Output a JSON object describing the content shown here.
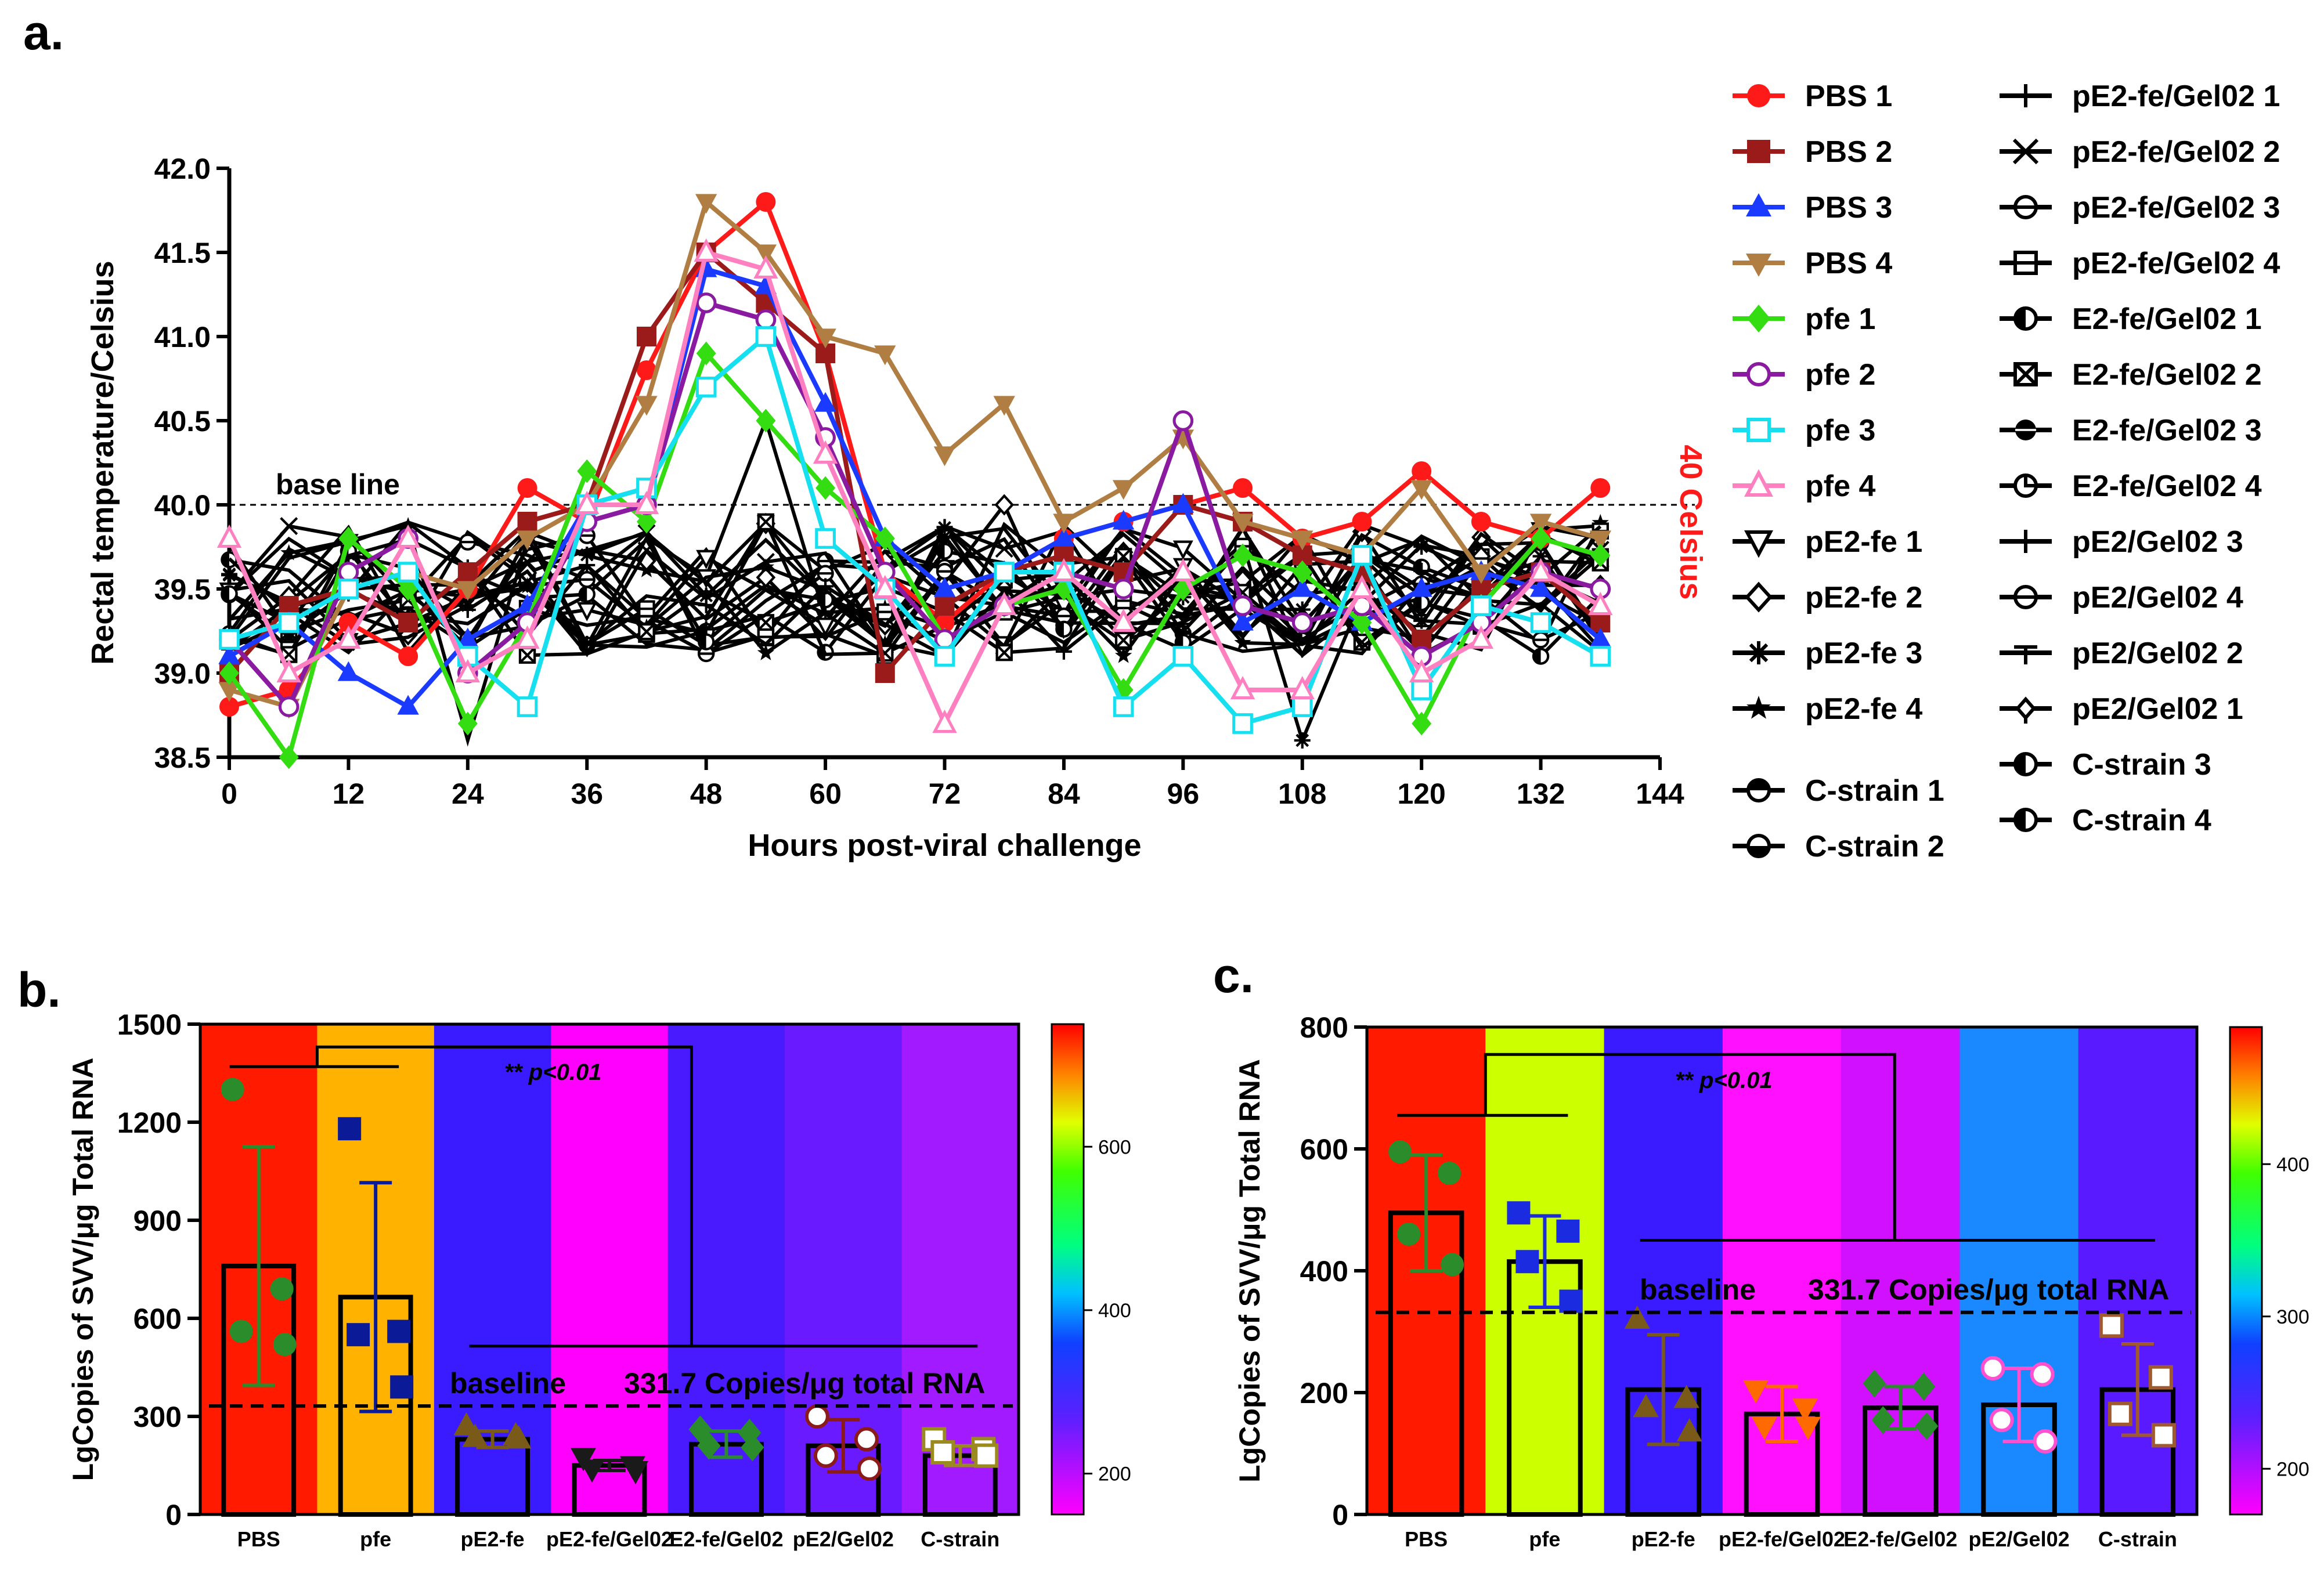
{
  "panel_labels": {
    "a": "a.",
    "b": "b.",
    "c": "c."
  },
  "colors": {
    "red": "#ff1a1a",
    "black": "#000000"
  },
  "chart_data": [
    {
      "id": "a",
      "type": "line",
      "xlabel": "Hours post-viral challenge",
      "ylabel": "Rectal temperature/Celsius",
      "xlim": [
        0,
        144
      ],
      "ylim": [
        38.5,
        42.0
      ],
      "xticks": [
        0,
        12,
        24,
        36,
        48,
        60,
        72,
        84,
        96,
        108,
        120,
        132,
        144
      ],
      "yticks": [
        38.5,
        39.0,
        39.5,
        40.0,
        40.5,
        41.0,
        41.5,
        42.0
      ],
      "baseline_value": 40.0,
      "baseline_label": "base line",
      "right_label": "40 Celsius",
      "x": [
        0,
        6,
        12,
        18,
        24,
        30,
        36,
        42,
        48,
        54,
        60,
        66,
        72,
        78,
        84,
        90,
        96,
        102,
        108,
        114,
        120,
        126,
        132,
        138
      ],
      "series": [
        {
          "name": "PBS 1",
          "color": "#ff1a1a",
          "marker": "circle",
          "values": [
            38.8,
            38.9,
            39.3,
            39.1,
            39.5,
            40.1,
            39.9,
            40.8,
            41.5,
            41.8,
            40.9,
            39.6,
            39.3,
            39.6,
            39.8,
            39.9,
            40.0,
            40.1,
            39.8,
            39.9,
            40.2,
            39.9,
            39.8,
            40.1
          ]
        },
        {
          "name": "PBS 2",
          "color": "#9b1b1b",
          "marker": "square",
          "values": [
            39.0,
            39.4,
            39.5,
            39.3,
            39.6,
            39.9,
            40.0,
            41.0,
            41.5,
            41.2,
            40.9,
            39.0,
            39.4,
            39.6,
            39.7,
            39.6,
            40.0,
            39.9,
            39.7,
            39.6,
            39.2,
            39.5,
            39.6,
            39.3
          ]
        },
        {
          "name": "PBS 3",
          "color": "#1a3bff",
          "marker": "triangle",
          "values": [
            39.1,
            39.3,
            39.0,
            38.8,
            39.2,
            39.4,
            40.0,
            40.0,
            41.4,
            41.3,
            40.6,
            39.8,
            39.5,
            39.6,
            39.8,
            39.9,
            40.0,
            39.3,
            39.5,
            39.3,
            39.5,
            39.6,
            39.5,
            39.2
          ]
        },
        {
          "name": "PBS 4",
          "color": "#b07d42",
          "marker": "triangle-down",
          "values": [
            38.9,
            38.8,
            39.5,
            39.6,
            39.5,
            39.8,
            40.0,
            40.6,
            41.8,
            41.5,
            41.0,
            40.9,
            40.3,
            40.6,
            39.9,
            40.1,
            40.4,
            39.9,
            39.8,
            39.7,
            40.1,
            39.6,
            39.9,
            39.8
          ]
        },
        {
          "name": "pfe 1",
          "color": "#33dd11",
          "marker": "diamond",
          "values": [
            39.0,
            38.5,
            39.8,
            39.5,
            38.7,
            39.3,
            40.2,
            39.9,
            40.9,
            40.5,
            40.1,
            39.8,
            39.2,
            39.4,
            39.5,
            38.9,
            39.5,
            39.7,
            39.6,
            39.3,
            38.7,
            39.4,
            39.8,
            39.7
          ]
        },
        {
          "name": "pfe 2",
          "color": "#8a1aa0",
          "marker": "open-circle",
          "values": [
            39.2,
            38.8,
            39.6,
            39.8,
            39.0,
            39.3,
            39.9,
            40.0,
            41.2,
            41.1,
            40.4,
            39.6,
            39.2,
            39.4,
            39.6,
            39.5,
            40.5,
            39.4,
            39.3,
            39.4,
            39.1,
            39.3,
            39.6,
            39.5
          ]
        },
        {
          "name": "pfe 3",
          "color": "#16e0f0",
          "marker": "open-square",
          "values": [
            39.2,
            39.3,
            39.5,
            39.6,
            39.1,
            38.8,
            40.0,
            40.1,
            40.7,
            41.0,
            39.8,
            39.5,
            39.1,
            39.6,
            39.6,
            38.8,
            39.1,
            38.7,
            38.8,
            39.7,
            38.9,
            39.4,
            39.3,
            39.1
          ]
        },
        {
          "name": "pfe 4",
          "color": "#ff80c0",
          "marker": "open-triangle",
          "values": [
            39.8,
            39.0,
            39.2,
            39.8,
            39.0,
            39.2,
            40.0,
            40.0,
            41.5,
            41.4,
            40.3,
            39.5,
            38.7,
            39.4,
            39.6,
            39.3,
            39.6,
            38.9,
            38.9,
            39.5,
            39.0,
            39.2,
            39.6,
            39.4
          ]
        }
      ],
      "legend": [
        {
          "name": "PBS 1",
          "color": "#ff1a1a",
          "marker": "circle"
        },
        {
          "name": "PBS 2",
          "color": "#9b1b1b",
          "marker": "square"
        },
        {
          "name": "PBS 3",
          "color": "#1a3bff",
          "marker": "triangle"
        },
        {
          "name": "PBS 4",
          "color": "#b07d42",
          "marker": "triangle-down"
        },
        {
          "name": "pfe 1",
          "color": "#33dd11",
          "marker": "diamond"
        },
        {
          "name": "pfe 2",
          "color": "#8a1aa0",
          "marker": "open-circle"
        },
        {
          "name": "pfe 3",
          "color": "#16e0f0",
          "marker": "open-square"
        },
        {
          "name": "pfe 4",
          "color": "#ff80c0",
          "marker": "open-triangle"
        },
        {
          "name": "pE2-fe 1",
          "color": "#000000",
          "marker": "open-triangle-down"
        },
        {
          "name": "pE2-fe 2",
          "color": "#000000",
          "marker": "open-diamond"
        },
        {
          "name": "pE2-fe 3",
          "color": "#000000",
          "marker": "asterisk"
        },
        {
          "name": "pE2-fe 4",
          "color": "#000000",
          "marker": "star"
        },
        {
          "name": "C-strain 1",
          "color": "#000000",
          "marker": "half-circle-top"
        },
        {
          "name": "C-strain 2",
          "color": "#000000",
          "marker": "half-circle-bottom"
        },
        {
          "name": "pE2-fe/Gel02 1",
          "color": "#000000",
          "marker": "plus"
        },
        {
          "name": "pE2-fe/Gel02 2",
          "color": "#000000",
          "marker": "cross"
        },
        {
          "name": "pE2-fe/Gel02 3",
          "color": "#000000",
          "marker": "circle-line"
        },
        {
          "name": "pE2-fe/Gel02 4",
          "color": "#000000",
          "marker": "square-line"
        },
        {
          "name": "E2-fe/Gel02 1",
          "color": "#000000",
          "marker": "circle-half"
        },
        {
          "name": "E2-fe/Gel02 2",
          "color": "#000000",
          "marker": "square-x"
        },
        {
          "name": "E2-fe/Gel02 3",
          "color": "#000000",
          "marker": "circle-filled"
        },
        {
          "name": "E2-fe/Gel02 4",
          "color": "#000000",
          "marker": "circle-open-corner"
        },
        {
          "name": "pE2/Gel02 3",
          "color": "#000000",
          "marker": "plus"
        },
        {
          "name": "pE2/Gel02 4",
          "color": "#000000",
          "marker": "circle-line"
        },
        {
          "name": "pE2/Gel02 2",
          "color": "#000000",
          "marker": "tee"
        },
        {
          "name": "pE2/Gel02 1",
          "color": "#000000",
          "marker": "diamond-small"
        },
        {
          "name": "C-strain 3",
          "color": "#000000",
          "marker": "circle-half"
        },
        {
          "name": "C-strain 4",
          "color": "#000000",
          "marker": "circle-half"
        }
      ]
    },
    {
      "id": "b",
      "type": "bar",
      "ylabel": "LgCopies of SVV/μg Total RNA",
      "ylim": [
        0,
        1500
      ],
      "yticks": [
        0,
        300,
        600,
        900,
        1200,
        1500
      ],
      "categories": [
        "PBS",
        "pfe",
        "pE2-fe",
        "pE2-fe/Gel02",
        "E2-fe/Gel02",
        "pE2/Gel02",
        "C-strain"
      ],
      "values": [
        760,
        665,
        230,
        150,
        215,
        210,
        180
      ],
      "errors": [
        365,
        350,
        25,
        15,
        40,
        80,
        30
      ],
      "points": [
        [
          1300,
          690,
          560,
          520
        ],
        [
          1180,
          560,
          550,
          390
        ],
        [
          270,
          240,
          235,
          230
        ],
        [
          175,
          150,
          140,
          135
        ],
        [
          260,
          250,
          210,
          205
        ],
        [
          300,
          230,
          180,
          140
        ],
        [
          230,
          200,
          190,
          180
        ]
      ],
      "point_colors": [
        "#2a8c2a",
        "#0b1a96",
        "#7a5a18",
        "#1a1a1a",
        "#2a8c2a",
        "#8b1a1a",
        "#9a8a20"
      ],
      "column_colors": [
        "#ff1a00",
        "#ffb300",
        "#3a1aff",
        "#ff00ff",
        "#4a1aff",
        "#6a1aff",
        "#a21aff"
      ],
      "significance": "** p<0.01",
      "baseline_value": 331.7,
      "baseline_label": "baseline",
      "baseline_text": "331.7 Copies/μg total RNA",
      "colorbar_ticks": [
        200,
        400,
        600
      ]
    },
    {
      "id": "c",
      "type": "bar",
      "ylabel": "LgCopies of SVV/μg Total RNA",
      "ylim": [
        0,
        800
      ],
      "yticks": [
        0,
        200,
        400,
        600,
        800
      ],
      "categories": [
        "PBS",
        "pfe",
        "pE2-fe",
        "pE2-fe/Gel02",
        "E2-fe/Gel02",
        "pE2/Gel02",
        "C-strain"
      ],
      "values": [
        495,
        415,
        205,
        165,
        175,
        180,
        205
      ],
      "errors": [
        95,
        75,
        90,
        45,
        35,
        60,
        75
      ],
      "points": [
        [
          595,
          560,
          460,
          410
        ],
        [
          495,
          465,
          415,
          350
        ],
        [
          320,
          190,
          175,
          135
        ],
        [
          205,
          175,
          145,
          145
        ],
        [
          215,
          210,
          155,
          145
        ],
        [
          240,
          230,
          155,
          120
        ],
        [
          310,
          225,
          165,
          130
        ]
      ],
      "point_colors": [
        "#2a8c2a",
        "#1a2be0",
        "#7a5a18",
        "#ff6a00",
        "#2a8c2a",
        "#ff50d0",
        "#a05a30"
      ],
      "column_colors": [
        "#ff1a00",
        "#ccff00",
        "#3a1aff",
        "#ff10ff",
        "#d010ff",
        "#1a88ff",
        "#5a1aff"
      ],
      "significance": "** p<0.01",
      "baseline_value": 331.7,
      "baseline_label": "baseline",
      "baseline_text": "331.7 Copies/μg total RNA",
      "colorbar_ticks": [
        200,
        300,
        400
      ]
    }
  ]
}
